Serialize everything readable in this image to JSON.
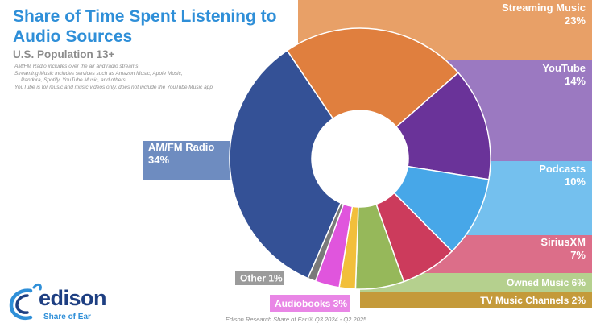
{
  "title": "Share of Time Spent Listening to Audio Sources",
  "subtitle": "U.S. Population 13+",
  "notes": [
    "AM/FM Radio includes over the air and radio streams",
    "Streaming Music includes services such as Amazon Music, Apple Music,",
    "Pandora, Spotify, YouTube Music, and others",
    "YouTube is for music and music videos only, does not include the YouTube Music app"
  ],
  "source": "Edison Research Share of Ear ® Q3 2024 - Q2 2025",
  "logo": {
    "word": "edison",
    "tagline": "Share of Ear"
  },
  "chart_data": {
    "type": "pie",
    "style": "donut",
    "unit": "%",
    "categories": [
      "Streaming Music",
      "YouTube",
      "Podcasts",
      "SiriusXM",
      "Owned Music",
      "TV Music Channels",
      "Audiobooks",
      "Other",
      "AM/FM Radio"
    ],
    "values": [
      23,
      14,
      10,
      7,
      6,
      2,
      3,
      1,
      34
    ],
    "data_labels": [
      "23%",
      "14%",
      "10%",
      "7%",
      "6%",
      "2%",
      "3%",
      "1%",
      "34%"
    ],
    "colors": [
      "#e07f3e",
      "#6a3399",
      "#47a7e8",
      "#cc3b5c",
      "#96b85a",
      "#f2bf3b",
      "#e055dd",
      "#7a7a7a",
      "#345196"
    ],
    "label_colors": [
      "#e8a067",
      "#9b79c1",
      "#74c0ee",
      "#dc6e89",
      "#b5d08e",
      "#c49a3a",
      "#e986e6",
      "#9b9b9b",
      "#6e8cc0"
    ]
  }
}
